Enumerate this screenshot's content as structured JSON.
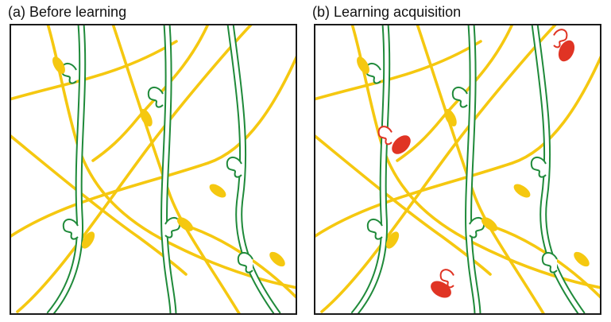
{
  "panels": [
    {
      "title": "(a) Before learning"
    },
    {
      "title": "(b) Learning acquisition"
    }
  ],
  "colors": {
    "axon": "#f5c810",
    "dendrite": "#1f8a3a",
    "learned_synapse": "#e03424",
    "border": "#1a1a1a"
  }
}
